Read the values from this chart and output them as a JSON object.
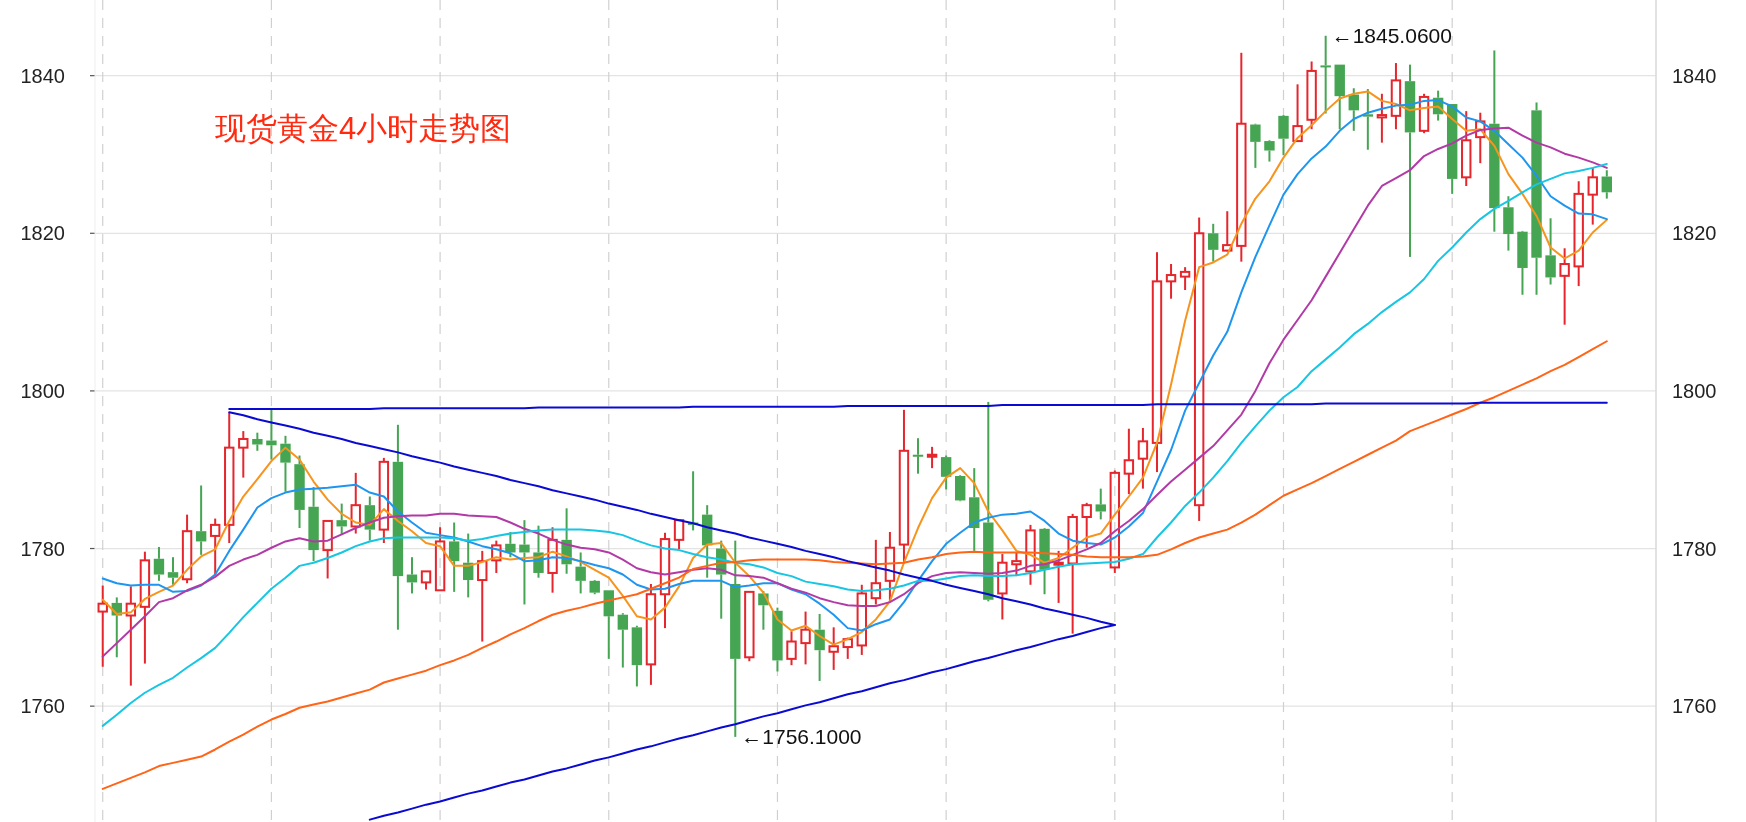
{
  "chart_data": {
    "type": "candlestick",
    "title": "现货黄金4小时走势图",
    "categories": [
      null,
      null,
      null,
      null,
      null,
      null,
      null,
      null,
      null,
      null,
      null,
      null,
      null,
      null,
      null,
      null,
      null,
      null,
      null,
      null,
      null,
      null,
      null,
      null,
      null,
      null,
      null,
      null,
      null,
      null,
      null,
      null,
      null,
      null,
      null,
      null,
      null,
      null,
      null,
      null,
      null,
      null,
      null,
      null,
      null,
      null,
      null,
      null,
      null,
      null,
      null,
      null,
      null,
      null,
      null,
      null,
      null,
      null,
      null,
      null,
      null,
      null,
      null,
      null,
      null,
      null,
      null,
      null,
      null,
      null,
      null,
      null,
      null,
      null,
      null,
      null,
      null,
      null,
      null,
      null,
      null,
      null,
      null,
      null,
      null,
      null,
      null,
      null,
      null,
      null,
      null,
      null,
      null,
      null,
      null,
      null,
      null,
      null,
      null,
      null,
      null,
      null,
      null,
      null,
      null,
      null,
      null,
      null
    ],
    "ylim": [
      1745.3,
      1849.6
    ],
    "yticks": [
      1760,
      1780,
      1800,
      1820,
      1840
    ],
    "y2lim": [
      1745.3,
      1849.6
    ],
    "y2ticks": [
      1760,
      1780,
      1800,
      1820,
      1840
    ],
    "tick_labels": "y",
    "grid": true,
    "series": [
      {
        "type": "candlestick",
        "colors": [
          "#e5262d",
          "#45a552",
          "#e5262d",
          "#e5262d",
          "#45a552",
          "#45a552",
          "#e5262d",
          "#45a552",
          "#e5262d",
          "#e5262d",
          "#e5262d",
          "#45a552",
          "#45a552",
          "#45a552",
          "#45a552",
          "#45a552",
          "#e5262d",
          "#45a552",
          "#e5262d",
          "#45a552",
          "#e5262d",
          "#45a552",
          "#45a552",
          "#e5262d",
          "#e5262d",
          "#45a552",
          "#45a552",
          "#e5262d",
          "#e5262d",
          "#45a552",
          "#45a552",
          "#45a552",
          "#e5262d",
          "#45a552",
          "#45a552",
          "#45a552",
          "#45a552",
          "#45a552",
          "#45a552",
          "#e5262d",
          "#e5262d",
          "#e5262d",
          "#45a552",
          "#45a552",
          "#45a552",
          "#45a552",
          "#e5262d",
          "#45a552",
          "#45a552",
          "#e5262d",
          "#e5262d",
          "#45a552",
          "#e5262d",
          "#e5262d",
          "#e5262d",
          "#e5262d",
          "#e5262d",
          "#e5262d",
          "#45a552",
          "#e5262d",
          "#45a552",
          "#45a552",
          "#45a552",
          "#45a552",
          "#e5262d",
          "#e5262d",
          "#e5262d",
          "#45a552",
          "#e5262d",
          "#e5262d",
          "#e5262d",
          "#45a552",
          "#e5262d",
          "#e5262d",
          "#e5262d",
          "#e5262d",
          "#e5262d",
          "#e5262d",
          "#e5262d",
          "#45a552",
          "#e5262d",
          "#e5262d",
          "#45a552",
          "#45a552",
          "#45a552",
          "#e5262d",
          "#e5262d",
          "#45a552",
          "#45a552",
          "#45a552",
          "#45a552",
          "#e5262d",
          "#e5262d",
          "#45a552",
          "#e5262d",
          "#45a552",
          "#45a552",
          "#e5262d",
          "#e5262d",
          "#45a552",
          "#45a552",
          "#45a552",
          "#45a552",
          "#45a552",
          "#e5262d",
          "#e5262d",
          "#e5262d",
          "#45a552"
        ],
        "ohlc": [
          [
            1772.0,
            1775.3,
            1765.0,
            1773.0
          ],
          [
            1773.1,
            1773.8,
            1766.2,
            1771.5
          ],
          [
            1771.5,
            1775.2,
            1762.6,
            1773.0
          ],
          [
            1772.6,
            1779.6,
            1765.4,
            1778.5
          ],
          [
            1778.7,
            1780.2,
            1775.9,
            1776.7
          ],
          [
            1777.0,
            1778.9,
            1775.4,
            1776.3
          ],
          [
            1776.1,
            1784.3,
            1775.6,
            1782.2
          ],
          [
            1782.2,
            1788.0,
            1779.2,
            1780.9
          ],
          [
            1781.6,
            1783.8,
            1776.6,
            1783.0
          ],
          [
            1783.0,
            1797.3,
            1780.7,
            1792.8
          ],
          [
            1792.8,
            1794.9,
            1789.0,
            1793.9
          ],
          [
            1793.9,
            1794.7,
            1792.4,
            1793.2
          ],
          [
            1793.7,
            1797.6,
            1791.3,
            1793.1
          ],
          [
            1793.3,
            1794.3,
            1787.2,
            1790.9
          ],
          [
            1790.7,
            1791.8,
            1782.6,
            1784.9
          ],
          [
            1785.3,
            1787.8,
            1778.4,
            1779.8
          ],
          [
            1779.8,
            1783.5,
            1776.2,
            1783.5
          ],
          [
            1783.6,
            1785.7,
            1781.8,
            1782.8
          ],
          [
            1782.8,
            1789.6,
            1781.9,
            1785.5
          ],
          [
            1785.5,
            1786.6,
            1781.0,
            1782.4
          ],
          [
            1782.4,
            1791.5,
            1780.7,
            1791.0
          ],
          [
            1791.0,
            1795.7,
            1769.7,
            1776.5
          ],
          [
            1776.7,
            1778.9,
            1774.3,
            1775.7
          ],
          [
            1775.7,
            1777.1,
            1774.8,
            1777.1
          ],
          [
            1774.7,
            1782.7,
            1774.7,
            1780.9
          ],
          [
            1780.9,
            1783.3,
            1774.5,
            1778.4
          ],
          [
            1778.2,
            1781.9,
            1773.8,
            1776.0
          ],
          [
            1776.0,
            1779.7,
            1768.2,
            1778.4
          ],
          [
            1778.5,
            1781.0,
            1776.9,
            1780.4
          ],
          [
            1780.6,
            1782.1,
            1778.9,
            1779.5
          ],
          [
            1780.5,
            1783.6,
            1772.9,
            1779.5
          ],
          [
            1779.5,
            1782.9,
            1776.3,
            1776.9
          ],
          [
            1776.9,
            1782.7,
            1774.4,
            1781.1
          ],
          [
            1781.1,
            1785.1,
            1776.8,
            1778.0
          ],
          [
            1777.7,
            1779.5,
            1774.3,
            1775.9
          ],
          [
            1775.9,
            1776.0,
            1774.2,
            1774.4
          ],
          [
            1774.7,
            1774.7,
            1766.0,
            1771.4
          ],
          [
            1771.6,
            1771.8,
            1764.9,
            1769.7
          ],
          [
            1770.0,
            1770.2,
            1762.5,
            1765.2
          ],
          [
            1765.3,
            1775.5,
            1762.7,
            1774.2
          ],
          [
            1774.2,
            1782.0,
            1769.9,
            1781.2
          ],
          [
            1781.1,
            1783.6,
            1779.9,
            1783.6
          ],
          [
            1783.3,
            1789.8,
            1782.3,
            1783.0
          ],
          [
            1784.3,
            1785.5,
            1776.3,
            1780.4
          ],
          [
            1780.0,
            1781.0,
            1771.1,
            1776.7
          ],
          [
            1775.5,
            1781.0,
            1756.1,
            1766.0
          ],
          [
            1766.2,
            1774.6,
            1765.7,
            1774.5
          ],
          [
            1774.3,
            1774.6,
            1769.7,
            1772.8
          ],
          [
            1772.1,
            1772.5,
            1764.4,
            1765.8
          ],
          [
            1766.0,
            1769.5,
            1765.2,
            1768.2
          ],
          [
            1768.0,
            1772.0,
            1765.3,
            1769.7
          ],
          [
            1769.7,
            1771.7,
            1763.2,
            1767.1
          ],
          [
            1766.9,
            1770.0,
            1764.6,
            1767.6
          ],
          [
            1767.5,
            1768.7,
            1766.0,
            1768.5
          ],
          [
            1767.7,
            1775.4,
            1766.5,
            1774.3
          ],
          [
            1773.7,
            1781.1,
            1772.9,
            1775.6
          ],
          [
            1775.9,
            1782.1,
            1773.3,
            1780.1
          ],
          [
            1780.5,
            1797.6,
            1778.2,
            1792.4
          ],
          [
            1791.9,
            1794.0,
            1789.5,
            1791.7
          ],
          [
            1791.7,
            1792.9,
            1790.2,
            1791.9
          ],
          [
            1791.6,
            1791.8,
            1787.5,
            1789.1
          ],
          [
            1789.2,
            1789.3,
            1786.0,
            1786.1
          ],
          [
            1786.5,
            1790.2,
            1779.7,
            1782.6
          ],
          [
            1783.3,
            1798.6,
            1773.3,
            1773.5
          ],
          [
            1774.3,
            1779.3,
            1771.0,
            1778.2
          ],
          [
            1778.0,
            1779.5,
            1776.5,
            1778.4
          ],
          [
            1777.1,
            1783.0,
            1775.4,
            1782.3
          ],
          [
            1782.5,
            1782.6,
            1774.2,
            1777.3
          ],
          [
            1778.0,
            1779.7,
            1773.1,
            1778.2
          ],
          [
            1778.1,
            1784.4,
            1769.2,
            1784.0
          ],
          [
            1784.0,
            1785.8,
            1780.1,
            1785.5
          ],
          [
            1785.6,
            1787.6,
            1783.7,
            1784.7
          ],
          [
            1777.6,
            1789.9,
            1776.9,
            1789.6
          ],
          [
            1789.5,
            1795.2,
            1786.9,
            1791.2
          ],
          [
            1791.4,
            1795.3,
            1787.6,
            1793.6
          ],
          [
            1793.4,
            1817.6,
            1789.7,
            1813.9
          ],
          [
            1813.9,
            1816.1,
            1811.7,
            1814.7
          ],
          [
            1814.5,
            1815.7,
            1812.8,
            1815.1
          ],
          [
            1785.5,
            1822.0,
            1783.5,
            1820.0
          ],
          [
            1820.0,
            1821.2,
            1816.4,
            1817.9
          ],
          [
            1817.8,
            1822.8,
            1817.7,
            1818.5
          ],
          [
            1818.4,
            1842.9,
            1816.4,
            1833.9
          ],
          [
            1833.8,
            1833.9,
            1828.3,
            1831.6
          ],
          [
            1831.7,
            1831.8,
            1829.1,
            1830.5
          ],
          [
            1834.9,
            1835.0,
            1829.9,
            1832.0
          ],
          [
            1831.7,
            1838.9,
            1831.6,
            1833.6
          ],
          [
            1834.4,
            1841.8,
            1833.2,
            1840.6
          ],
          [
            1841.3,
            1845.06,
            1835.2,
            1841.1
          ],
          [
            1841.4,
            1841.4,
            1833.2,
            1837.4
          ],
          [
            1837.6,
            1838.4,
            1833.0,
            1835.6
          ],
          [
            1835.1,
            1838.3,
            1830.6,
            1834.8
          ],
          [
            1834.7,
            1837.7,
            1831.5,
            1835.0
          ],
          [
            1834.9,
            1841.6,
            1833.2,
            1839.4
          ],
          [
            1839.3,
            1841.4,
            1817.0,
            1832.8
          ],
          [
            1833.0,
            1837.7,
            1832.7,
            1837.3
          ],
          [
            1837.2,
            1838.1,
            1834.3,
            1835.1
          ],
          [
            1836.4,
            1836.4,
            1825.0,
            1826.9
          ],
          [
            1827.1,
            1835.5,
            1826.0,
            1831.8
          ],
          [
            1832.2,
            1835.3,
            1828.9,
            1834.2
          ],
          [
            1833.9,
            1843.2,
            1820.2,
            1823.2
          ],
          [
            1823.3,
            1824.7,
            1817.8,
            1819.9
          ],
          [
            1820.2,
            1820.3,
            1812.2,
            1815.6
          ],
          [
            1835.6,
            1836.6,
            1812.2,
            1816.9
          ],
          [
            1817.2,
            1821.9,
            1813.5,
            1814.4
          ],
          [
            1814.6,
            1818.1,
            1808.4,
            1816.1
          ],
          [
            1815.8,
            1826.6,
            1813.3,
            1825.0
          ],
          [
            1824.9,
            1828.3,
            1821.1,
            1827.1
          ],
          [
            1827.2,
            1828.0,
            1824.4,
            1825.2
          ]
        ]
      },
      {
        "type": "line",
        "color": "#f7941d",
        "values": [
          1773.5,
          1771.7,
          1771.9,
          1773.6,
          1774.5,
          1775.3,
          1777.3,
          1779.0,
          1779.9,
          1783.5,
          1786.6,
          1788.8,
          1791.1,
          1792.8,
          1791.3,
          1788.5,
          1786.2,
          1784.4,
          1783.3,
          1783.0,
          1785.0,
          1783.5,
          1782.2,
          1780.7,
          1780.3,
          1777.8,
          1777.8,
          1778.3,
          1778.9,
          1778.6,
          1778.8,
          1778.9,
          1779.6,
          1779.0,
          1778.3,
          1777.3,
          1776.3,
          1774.0,
          1771.4,
          1771.0,
          1772.5,
          1775.2,
          1778.8,
          1780.5,
          1780.7,
          1778.2,
          1776.5,
          1774.4,
          1771.0,
          1769.6,
          1770.2,
          1768.9,
          1767.8,
          1768.5,
          1769.4,
          1771.0,
          1773.3,
          1778.2,
          1782.6,
          1786.4,
          1789.0,
          1790.2,
          1788.3,
          1784.7,
          1782.3,
          1779.7,
          1779.2,
          1778.2,
          1778.8,
          1780.1,
          1781.4,
          1781.9,
          1784.3,
          1786.6,
          1789.0,
          1793.4,
          1800.8,
          1808.9,
          1815.7,
          1816.3,
          1817.3,
          1821.2,
          1824.4,
          1826.6,
          1829.6,
          1832.1,
          1833.7,
          1835.5,
          1837.1,
          1837.7,
          1838.0,
          1836.8,
          1836.4,
          1835.6,
          1835.9,
          1836.1,
          1834.5,
          1833.0,
          1833.2,
          1831.1,
          1827.5,
          1825.0,
          1822.2,
          1818.2,
          1816.8,
          1817.8,
          1820.1,
          1821.7
        ]
      },
      {
        "type": "line",
        "color": "#1e96f0",
        "values": [
          1776.2,
          1775.6,
          1775.3,
          1775.4,
          1775.4,
          1774.5,
          1774.6,
          1775.3,
          1776.7,
          1779.7,
          1782.4,
          1785.2,
          1786.4,
          1787.1,
          1787.5,
          1787.6,
          1787.7,
          1787.9,
          1788.1,
          1787.1,
          1786.6,
          1784.7,
          1783.3,
          1782.0,
          1781.7,
          1781.4,
          1780.9,
          1780.3,
          1779.9,
          1779.4,
          1778.4,
          1778.5,
          1778.9,
          1778.8,
          1778.4,
          1777.9,
          1777.5,
          1776.7,
          1775.4,
          1774.8,
          1774.9,
          1775.5,
          1775.9,
          1775.9,
          1775.9,
          1775.1,
          1775.3,
          1775.6,
          1775.6,
          1774.8,
          1774.2,
          1773.0,
          1771.6,
          1769.9,
          1769.6,
          1770.4,
          1771.0,
          1773.2,
          1775.9,
          1778.4,
          1780.6,
          1782.0,
          1783.3,
          1783.9,
          1784.3,
          1784.4,
          1784.7,
          1783.5,
          1781.9,
          1781.0,
          1780.7,
          1780.5,
          1781.4,
          1782.8,
          1784.5,
          1788.5,
          1792.5,
          1797.5,
          1801.0,
          1804.5,
          1807.5,
          1812.5,
          1817.0,
          1821.0,
          1824.9,
          1827.5,
          1829.5,
          1831.0,
          1833.0,
          1834.5,
          1835.3,
          1835.8,
          1836.2,
          1836.3,
          1836.8,
          1836.9,
          1836.1,
          1834.7,
          1834.2,
          1833.0,
          1831.3,
          1829.6,
          1827.3,
          1824.7,
          1823.5,
          1822.5,
          1822.4,
          1821.8
        ]
      },
      {
        "type": "line",
        "color": "#b23aa6",
        "values": [
          1766.3,
          1768.0,
          1769.7,
          1771.4,
          1773.2,
          1773.7,
          1774.7,
          1775.4,
          1776.4,
          1777.8,
          1778.6,
          1779.2,
          1780.1,
          1780.9,
          1781.3,
          1780.9,
          1781.0,
          1781.8,
          1782.6,
          1783.3,
          1783.9,
          1784.1,
          1784.2,
          1784.2,
          1784.4,
          1784.4,
          1784.2,
          1784.1,
          1784.0,
          1783.3,
          1782.5,
          1781.9,
          1781.1,
          1780.5,
          1780.1,
          1779.9,
          1779.5,
          1778.6,
          1777.5,
          1777.0,
          1776.7,
          1777.0,
          1777.3,
          1777.5,
          1777.3,
          1776.6,
          1776.5,
          1776.3,
          1775.6,
          1774.9,
          1774.4,
          1773.7,
          1773.2,
          1772.8,
          1772.7,
          1772.7,
          1773.2,
          1774.2,
          1775.6,
          1776.5,
          1776.9,
          1777.0,
          1776.9,
          1776.8,
          1776.9,
          1777.2,
          1777.8,
          1778.0,
          1778.5,
          1779.2,
          1779.9,
          1780.7,
          1782.2,
          1783.5,
          1785.0,
          1786.8,
          1788.5,
          1790.0,
          1791.5,
          1793.0,
          1795.0,
          1797.0,
          1800.0,
          1803.5,
          1806.5,
          1809.0,
          1811.5,
          1814.5,
          1817.5,
          1820.5,
          1823.5,
          1826.0,
          1827.0,
          1828.0,
          1829.8,
          1830.7,
          1831.4,
          1832.4,
          1833.1,
          1833.3,
          1833.4,
          1832.4,
          1831.5,
          1830.9,
          1830.1,
          1829.6,
          1829.0,
          1828.3
        ]
      },
      {
        "type": "line",
        "color": "#17c6e3",
        "values": [
          1757.5,
          1758.9,
          1760.4,
          1761.7,
          1762.7,
          1763.6,
          1764.9,
          1766.1,
          1767.4,
          1769.3,
          1771.3,
          1773.1,
          1774.9,
          1776.3,
          1777.8,
          1778.2,
          1778.8,
          1779.5,
          1780.3,
          1780.9,
          1781.3,
          1781.4,
          1781.4,
          1781.4,
          1781.4,
          1781.3,
          1781.0,
          1781.2,
          1781.6,
          1781.9,
          1782.1,
          1782.3,
          1782.4,
          1782.4,
          1782.4,
          1782.3,
          1782.1,
          1781.7,
          1781.0,
          1780.4,
          1780.0,
          1779.8,
          1779.3,
          1778.9,
          1778.6,
          1778.2,
          1778.0,
          1777.6,
          1776.9,
          1776.5,
          1775.8,
          1775.5,
          1775.2,
          1774.8,
          1774.6,
          1774.7,
          1774.9,
          1775.3,
          1775.9,
          1775.9,
          1776.2,
          1776.5,
          1776.6,
          1776.5,
          1776.5,
          1776.6,
          1776.9,
          1777.3,
          1777.7,
          1778.0,
          1778.1,
          1778.2,
          1778.3,
          1778.7,
          1779.3,
          1781.4,
          1783.3,
          1785.4,
          1787.1,
          1789.0,
          1791.1,
          1793.4,
          1795.5,
          1797.5,
          1799.2,
          1800.5,
          1802.5,
          1804.0,
          1805.5,
          1807.2,
          1808.5,
          1810.0,
          1811.3,
          1812.5,
          1814.2,
          1816.5,
          1818.2,
          1820.1,
          1821.8,
          1823.1,
          1824.1,
          1825.2,
          1826.2,
          1826.9,
          1827.6,
          1827.9,
          1828.3,
          1828.8
        ]
      },
      {
        "type": "line",
        "color": "#ff6417",
        "values": [
          1749.5,
          1750.2,
          1750.9,
          1751.6,
          1752.4,
          1752.8,
          1753.2,
          1753.6,
          1754.5,
          1755.5,
          1756.4,
          1757.4,
          1758.3,
          1759.0,
          1759.8,
          1760.2,
          1760.6,
          1761.1,
          1761.6,
          1762.1,
          1763.0,
          1763.5,
          1764.0,
          1764.5,
          1765.2,
          1765.8,
          1766.5,
          1767.4,
          1768.2,
          1769.1,
          1769.9,
          1770.8,
          1771.6,
          1772.1,
          1772.5,
          1773.0,
          1773.4,
          1773.8,
          1774.2,
          1774.9,
          1775.6,
          1776.3,
          1777.4,
          1777.8,
          1778.2,
          1778.3,
          1778.5,
          1778.6,
          1778.6,
          1778.6,
          1778.6,
          1778.5,
          1778.3,
          1778.2,
          1778.1,
          1778.0,
          1778.1,
          1778.2,
          1778.6,
          1778.9,
          1779.3,
          1779.5,
          1779.6,
          1779.5,
          1779.5,
          1779.5,
          1779.5,
          1779.4,
          1779.3,
          1779.2,
          1779.0,
          1778.9,
          1778.9,
          1778.9,
          1779.0,
          1779.2,
          1779.9,
          1780.7,
          1781.4,
          1781.9,
          1782.4,
          1783.3,
          1784.3,
          1785.5,
          1786.7,
          1787.5,
          1788.3,
          1789.2,
          1790.1,
          1791.0,
          1791.9,
          1792.8,
          1793.7,
          1794.9,
          1795.6,
          1796.3,
          1797.0,
          1797.7,
          1798.5,
          1799.2,
          1800.0,
          1800.8,
          1801.6,
          1802.5,
          1803.3,
          1804.3,
          1805.3,
          1806.3
        ]
      },
      {
        "type": "line",
        "color": "#0a0ad2",
        "values": [
          null,
          null,
          null,
          null,
          null,
          null,
          null,
          null,
          null,
          1797.7,
          1797.7,
          1797.7,
          1797.7,
          1797.7,
          1797.7,
          1797.7,
          1797.7,
          1797.7,
          1797.7,
          1797.7,
          1797.8,
          1797.8,
          1797.8,
          1797.8,
          1797.8,
          1797.8,
          1797.8,
          1797.8,
          1797.8,
          1797.8,
          1797.8,
          1797.9,
          1797.9,
          1797.9,
          1797.9,
          1797.9,
          1797.9,
          1797.9,
          1797.9,
          1797.9,
          1797.9,
          1797.9,
          1798.0,
          1798.0,
          1798.0,
          1798.0,
          1798.0,
          1798.0,
          1798.0,
          1798.0,
          1798.0,
          1798.0,
          1798.0,
          1798.1,
          1798.1,
          1798.1,
          1798.1,
          1798.1,
          1798.1,
          1798.1,
          1798.1,
          1798.1,
          1798.1,
          1798.1,
          1798.2,
          1798.2,
          1798.2,
          1798.2,
          1798.2,
          1798.2,
          1798.2,
          1798.2,
          1798.2,
          1798.2,
          1798.2,
          1798.3,
          1798.3,
          1798.3,
          1798.3,
          1798.3,
          1798.3,
          1798.3,
          1798.3,
          1798.3,
          1798.3,
          1798.3,
          1798.3,
          1798.4,
          1798.4,
          1798.4,
          1798.4,
          1798.4,
          1798.4,
          1798.4,
          1798.4,
          1798.4,
          1798.4,
          1798.4,
          1798.5,
          1798.5,
          1798.5,
          1798.5,
          1798.5,
          1798.5,
          1798.5,
          1798.5,
          1798.5,
          1798.5
        ]
      },
      {
        "type": "line",
        "color": "#0a0ad2",
        "values": [
          null,
          null,
          null,
          null,
          null,
          null,
          null,
          null,
          null,
          1797.3,
          1796.9,
          1796.4,
          1796.0,
          1795.6,
          1795.2,
          1794.7,
          1794.3,
          1793.9,
          1793.4,
          1793.0,
          1792.6,
          1792.2,
          1791.7,
          1791.3,
          1790.9,
          1790.4,
          1790.0,
          1789.6,
          1789.2,
          1788.7,
          1788.3,
          1787.9,
          1787.4,
          1787.0,
          1786.6,
          1786.2,
          1785.7,
          1785.3,
          1784.9,
          1784.4,
          1784.0,
          1783.6,
          1783.2,
          1782.7,
          1782.3,
          1781.9,
          1781.4,
          1781.0,
          1780.6,
          1780.2,
          1779.7,
          1779.3,
          1778.9,
          1778.4,
          1778.0,
          1777.6,
          1777.2,
          1776.7,
          1776.3,
          1775.9,
          1775.4,
          1775.0,
          1774.6,
          1774.2,
          1773.7,
          1773.3,
          1772.9,
          1772.4,
          1772.0,
          1771.6,
          1771.2,
          1770.7,
          1770.3,
          null,
          null,
          null,
          null,
          null,
          null,
          null,
          null,
          null,
          null,
          null,
          null,
          null,
          null,
          null,
          null,
          null,
          null,
          null,
          null,
          null,
          null,
          null,
          null,
          null,
          null,
          null,
          null,
          null,
          null,
          null,
          null,
          null,
          null,
          null
        ]
      },
      {
        "type": "line",
        "color": "#0a0ad2",
        "values": [
          null,
          null,
          null,
          null,
          null,
          null,
          null,
          null,
          null,
          null,
          null,
          null,
          null,
          null,
          null,
          null,
          null,
          null,
          null,
          1745.6,
          1746.1,
          1746.5,
          1747.0,
          1747.5,
          1747.9,
          1748.4,
          1748.9,
          1749.3,
          1749.8,
          1750.3,
          1750.7,
          1751.2,
          1751.7,
          1752.1,
          1752.6,
          1753.1,
          1753.5,
          1754.0,
          1754.5,
          1754.9,
          1755.4,
          1755.9,
          1756.3,
          1756.8,
          1757.3,
          1757.7,
          1758.2,
          1758.7,
          1759.1,
          1759.6,
          1760.1,
          1760.5,
          1761.0,
          1761.5,
          1761.9,
          1762.4,
          1762.9,
          1763.3,
          1763.8,
          1764.3,
          1764.7,
          1765.2,
          1765.7,
          1766.1,
          1766.6,
          1767.1,
          1767.5,
          1768.0,
          1768.5,
          1768.9,
          1769.4,
          1769.9,
          1770.3,
          null,
          null,
          null,
          null,
          null,
          null,
          null,
          null,
          null,
          null,
          null,
          null,
          null,
          null,
          null,
          null,
          null,
          null,
          null,
          null,
          null,
          null,
          null,
          null,
          null,
          null,
          null,
          null,
          null,
          null,
          null,
          null,
          null,
          null,
          null
        ]
      }
    ],
    "annotations": [
      "←1845.0600",
      "←1756.1000"
    ]
  }
}
